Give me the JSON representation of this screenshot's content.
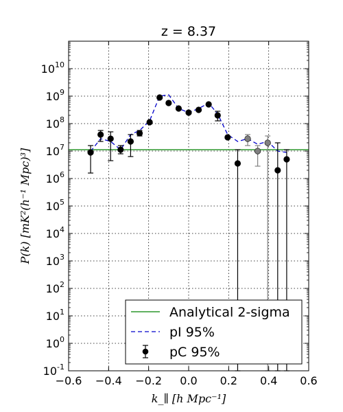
{
  "chart_data": {
    "type": "scatter",
    "title": "z = 8.37",
    "xlabel": "k_∥  [h Mpc⁻¹]",
    "ylabel": "P(k)  [mK²(h⁻¹ Mpc)³]",
    "xlim": [
      -0.6,
      0.6
    ],
    "ylim_log10": [
      -1,
      11
    ],
    "yscale": "log",
    "grid": true,
    "legend_position": "lower-right",
    "x_ticks": [
      "−0.6",
      "−0.4",
      "−0.2",
      "0.0",
      "0.2",
      "0.4",
      "0.6"
    ],
    "x_tick_values": [
      -0.6,
      -0.4,
      -0.2,
      0.0,
      0.2,
      0.4,
      0.6
    ],
    "y_tick_exponents": [
      -1,
      0,
      1,
      2,
      3,
      4,
      5,
      6,
      7,
      8,
      9,
      10
    ],
    "y_tick_base": "10",
    "y_tick_labels": [
      "-1",
      "0",
      "1",
      "2",
      "3",
      "4",
      "5",
      "6",
      "7",
      "8",
      "9",
      "10"
    ],
    "series": [
      {
        "name": "Analytical 2-sigma",
        "kind": "hline",
        "color": "#008000",
        "value_log10": 7.05
      },
      {
        "name": "pI 95%",
        "kind": "dashed-line",
        "color": "#0000cc",
        "x": [
          -0.49,
          -0.44,
          -0.39,
          -0.34,
          -0.29,
          -0.245,
          -0.195,
          -0.145,
          -0.1,
          -0.05,
          0.0,
          0.05,
          0.1,
          0.145,
          0.195,
          0.245,
          0.295,
          0.345,
          0.395,
          0.445,
          0.49
        ],
        "y_log10": [
          6.99,
          7.45,
          7.35,
          7.05,
          7.6,
          7.75,
          8.1,
          9.0,
          9.05,
          8.55,
          8.4,
          8.55,
          8.75,
          8.35,
          7.6,
          7.35,
          7.45,
          7.25,
          7.35,
          7.0,
          6.95
        ]
      },
      {
        "name": "pC 95%",
        "kind": "errorbar",
        "color": "#000000",
        "x": [
          -0.49,
          -0.44,
          -0.39,
          -0.34,
          -0.29,
          -0.245,
          -0.195,
          -0.145,
          -0.1,
          -0.05,
          0.0,
          0.05,
          0.1,
          0.145,
          0.195,
          0.245,
          0.295,
          0.345,
          0.395,
          0.445,
          0.49
        ],
        "y_log10": [
          6.95,
          7.6,
          7.45,
          7.05,
          7.35,
          7.65,
          8.05,
          8.95,
          8.75,
          8.55,
          8.4,
          8.5,
          8.7,
          8.3,
          7.5,
          6.55,
          7.45,
          7.0,
          7.3,
          6.3,
          6.7
        ],
        "yerr_low_log10": [
          6.2,
          7.35,
          6.65,
          6.9,
          6.8,
          7.55,
          null,
          null,
          null,
          null,
          null,
          null,
          null,
          8.1,
          null,
          -1,
          7.2,
          6.45,
          -1,
          -1,
          -1
        ],
        "yerr_high_log10": [
          7.2,
          7.75,
          7.7,
          7.2,
          7.6,
          7.75,
          null,
          null,
          null,
          null,
          null,
          null,
          null,
          8.45,
          null,
          7.05,
          7.6,
          7.2,
          7.55,
          7.3,
          7.05
        ],
        "marker_colors": [
          "#000000",
          "#000000",
          "#000000",
          "#000000",
          "#000000",
          "#000000",
          "#000000",
          "#000000",
          "#000000",
          "#000000",
          "#000000",
          "#000000",
          "#000000",
          "#000000",
          "#000000",
          "#000000",
          "#808080",
          "#808080",
          "#808080",
          "#000000",
          "#000000"
        ]
      }
    ]
  }
}
